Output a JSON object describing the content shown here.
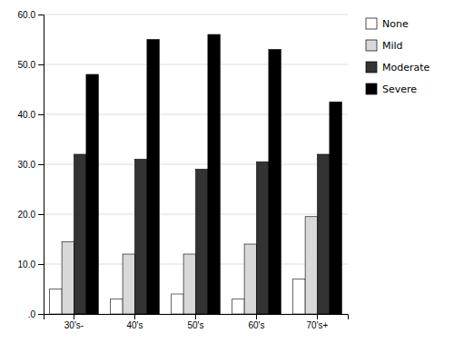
{
  "chart_data": {
    "type": "bar",
    "categories": [
      "30's-",
      "40's",
      "50's",
      "60's",
      "70's+"
    ],
    "series": [
      {
        "name": "None",
        "color": "#ffffff",
        "values": [
          5.0,
          3.0,
          4.0,
          3.0,
          7.0
        ]
      },
      {
        "name": "Mild",
        "color": "#d8d8d8",
        "values": [
          14.5,
          12.0,
          12.0,
          14.0,
          19.5
        ]
      },
      {
        "name": "Moderate",
        "color": "#333333",
        "values": [
          32.0,
          31.0,
          29.0,
          30.5,
          32.0
        ]
      },
      {
        "name": "Severe",
        "color": "#000000",
        "values": [
          48.0,
          55.0,
          56.0,
          53.0,
          42.5
        ]
      }
    ],
    "ylim": [
      0,
      60
    ],
    "yticks": [
      {
        "value": 0,
        "label": ".0"
      },
      {
        "value": 10,
        "label": "10.0"
      },
      {
        "value": 20,
        "label": "20.0"
      },
      {
        "value": 30,
        "label": "30.0"
      },
      {
        "value": 40,
        "label": "40.0"
      },
      {
        "value": 50,
        "label": "50.0"
      },
      {
        "value": 60,
        "label": "60.0"
      }
    ],
    "grid": true,
    "legend": "right"
  }
}
